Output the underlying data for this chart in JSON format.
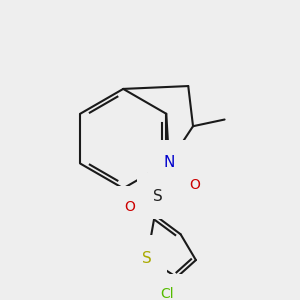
{
  "background_color": "#eeeeee",
  "bond_color": "#1a1a1a",
  "bond_lw": 1.5,
  "figsize": [
    3.0,
    3.0
  ],
  "dpi": 100,
  "xlim": [
    0,
    300
  ],
  "ylim": [
    0,
    300
  ]
}
